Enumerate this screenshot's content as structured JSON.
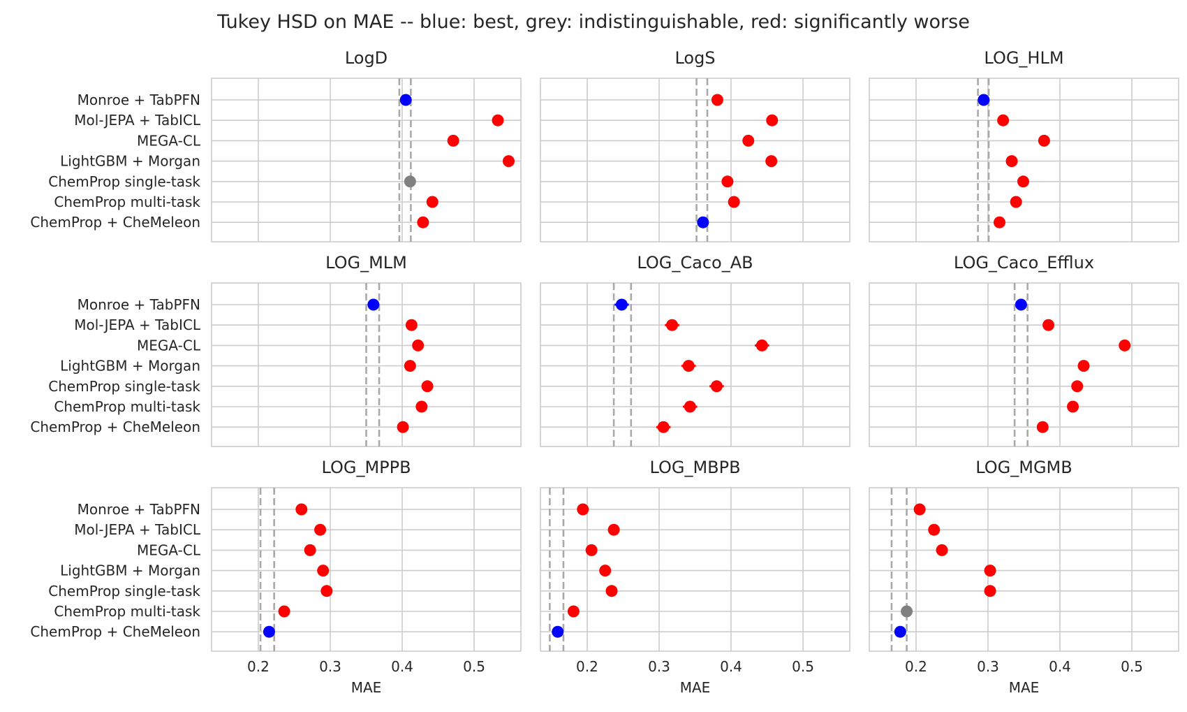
{
  "figure": {
    "title": "Tukey HSD on MAE -- blue: best, grey: indistinguishable, red: significantly worse"
  },
  "colors": {
    "best": "#0000ff",
    "indistinguishable": "#808080",
    "worse": "#ff0000",
    "reference_line": "#a9a9a9",
    "grid": "#cccccc",
    "frame": "#cccccc"
  },
  "chart_data": {
    "type": "scatter",
    "models": [
      "Monroe + TabPFN",
      "Mol-JEPA + TabICL",
      "MEGA-CL",
      "LightGBM + Morgan",
      "ChemProp single-task",
      "ChemProp multi-task",
      "ChemProp + CheMeleon"
    ],
    "xlabel": "MAE",
    "xlim": [
      0.135,
      0.565
    ],
    "xticks": [
      "0.2",
      "0.3",
      "0.4",
      "0.5"
    ],
    "xtick_values": [
      0.2,
      0.3,
      0.4,
      0.5
    ],
    "grid": true,
    "panels": [
      {
        "title": "LogD",
        "values": [
          0.405,
          0.533,
          0.471,
          0.548,
          0.411,
          0.442,
          0.429
        ],
        "errors": [
          0.006,
          0.006,
          0.006,
          0.006,
          0.006,
          0.006,
          0.006
        ],
        "status": [
          "best",
          "worse",
          "worse",
          "worse",
          "indistinguishable",
          "worse",
          "worse"
        ],
        "reference_lines": [
          0.396,
          0.412
        ]
      },
      {
        "title": "LogS",
        "values": [
          0.381,
          0.457,
          0.424,
          0.456,
          0.395,
          0.404,
          0.361
        ],
        "errors": [
          0.005,
          0.005,
          0.005,
          0.005,
          0.005,
          0.005,
          0.005
        ],
        "status": [
          "worse",
          "worse",
          "worse",
          "worse",
          "worse",
          "worse",
          "best"
        ],
        "reference_lines": [
          0.352,
          0.367
        ]
      },
      {
        "title": "LOG_HLM",
        "values": [
          0.294,
          0.321,
          0.378,
          0.333,
          0.349,
          0.339,
          0.316
        ],
        "errors": [
          0.005,
          0.005,
          0.005,
          0.005,
          0.005,
          0.005,
          0.005
        ],
        "status": [
          "best",
          "worse",
          "worse",
          "worse",
          "worse",
          "worse",
          "worse"
        ],
        "reference_lines": [
          0.286,
          0.301
        ]
      },
      {
        "title": "LOG_MLM",
        "values": [
          0.36,
          0.413,
          0.422,
          0.411,
          0.435,
          0.427,
          0.401
        ],
        "errors": [
          0.006,
          0.006,
          0.006,
          0.006,
          0.006,
          0.006,
          0.006
        ],
        "status": [
          "best",
          "worse",
          "worse",
          "worse",
          "worse",
          "worse",
          "worse"
        ],
        "reference_lines": [
          0.35,
          0.368
        ]
      },
      {
        "title": "LOG_Caco_AB",
        "values": [
          0.248,
          0.318,
          0.443,
          0.341,
          0.38,
          0.343,
          0.306
        ],
        "errors": [
          0.01,
          0.01,
          0.01,
          0.01,
          0.01,
          0.01,
          0.01
        ],
        "status": [
          "best",
          "worse",
          "worse",
          "worse",
          "worse",
          "worse",
          "worse"
        ],
        "reference_lines": [
          0.237,
          0.261
        ]
      },
      {
        "title": "LOG_Caco_Efflux",
        "values": [
          0.346,
          0.384,
          0.49,
          0.433,
          0.424,
          0.418,
          0.376
        ],
        "errors": [
          0.006,
          0.006,
          0.006,
          0.006,
          0.006,
          0.006,
          0.006
        ],
        "status": [
          "best",
          "worse",
          "worse",
          "worse",
          "worse",
          "worse",
          "worse"
        ],
        "reference_lines": [
          0.337,
          0.355
        ]
      },
      {
        "title": "LOG_MPPB",
        "values": [
          0.26,
          0.286,
          0.272,
          0.29,
          0.295,
          0.236,
          0.215
        ],
        "errors": [
          0.005,
          0.005,
          0.005,
          0.005,
          0.005,
          0.005,
          0.005
        ],
        "status": [
          "worse",
          "worse",
          "worse",
          "worse",
          "worse",
          "worse",
          "best"
        ],
        "reference_lines": [
          0.203,
          0.222
        ]
      },
      {
        "title": "LOG_MBPB",
        "values": [
          0.194,
          0.237,
          0.206,
          0.225,
          0.234,
          0.181,
          0.159
        ],
        "errors": [
          0.005,
          0.005,
          0.005,
          0.005,
          0.005,
          0.005,
          0.005
        ],
        "status": [
          "worse",
          "worse",
          "worse",
          "worse",
          "worse",
          "worse",
          "best"
        ],
        "reference_lines": [
          0.148,
          0.167
        ]
      },
      {
        "title": "LOG_MGMB",
        "values": [
          0.205,
          0.225,
          0.236,
          0.303,
          0.303,
          0.187,
          0.178
        ],
        "errors": [
          0.008,
          0.008,
          0.008,
          0.008,
          0.008,
          0.008,
          0.008
        ],
        "status": [
          "worse",
          "worse",
          "worse",
          "worse",
          "worse",
          "indistinguishable",
          "best"
        ],
        "reference_lines": [
          0.166,
          0.187
        ]
      }
    ]
  }
}
